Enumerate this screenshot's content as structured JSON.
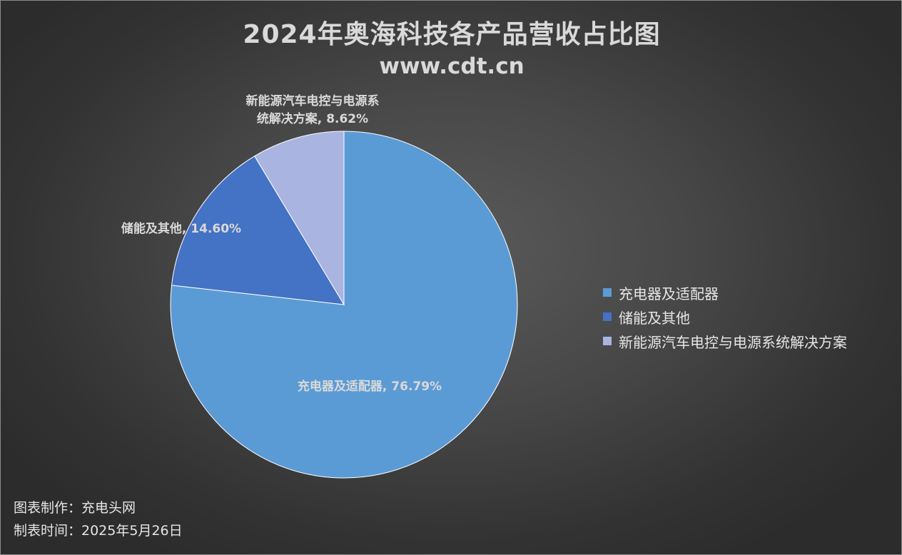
{
  "chart_data": {
    "type": "pie",
    "title": "2024年奥海科技各产品营收占比图",
    "subtitle": "www.cdt.cn",
    "categories": [
      "充电器及适配器",
      "储能及其他",
      "新能源汽车电控与电源系统解决方案"
    ],
    "values": [
      76.79,
      14.6,
      8.62
    ],
    "data_labels": [
      [
        "充电器及适配器, 76.79%"
      ],
      [
        "储能及其他, 14.60%"
      ],
      [
        "新能源汽车电控与电源系",
        "统解决方案, 8.62%"
      ]
    ],
    "colors": [
      "#5b9bd5",
      "#4472c4",
      "#a9b4e0"
    ],
    "legend_position": "right"
  },
  "footer": {
    "maker": "图表制作：充电头网",
    "date": "制表时间：2025年5月26日"
  }
}
